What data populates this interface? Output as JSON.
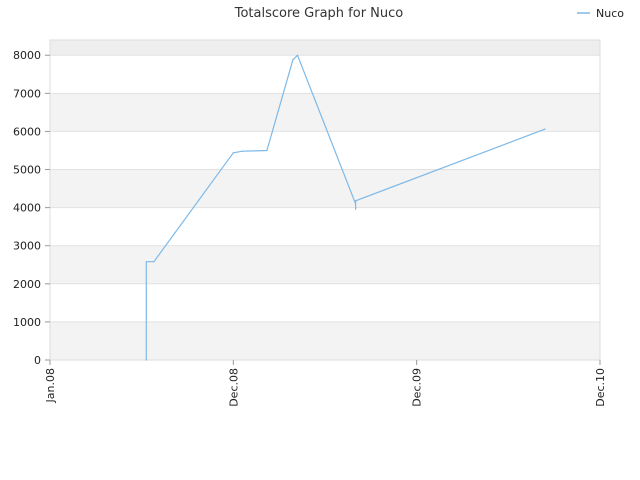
{
  "chart_data": {
    "type": "line",
    "title": "Totalscore Graph for Nuco",
    "xlabel": "",
    "ylabel": "",
    "x_ticks": [
      "Jan.08",
      "Dec.08",
      "Dec.09",
      "Dec.10"
    ],
    "xlim": [
      0,
      36
    ],
    "ylim": [
      0,
      8400
    ],
    "y_ticks": [
      0,
      1000,
      2000,
      3000,
      4000,
      5000,
      6000,
      7000,
      8000
    ],
    "grid": true,
    "banded_background": true,
    "legend_position": "top-right",
    "series": [
      {
        "name": "Nuco",
        "color": "#7db9e8",
        "points": [
          {
            "x": 6.3,
            "y": 0
          },
          {
            "x": 6.3,
            "y": 2580
          },
          {
            "x": 6.8,
            "y": 2580
          },
          {
            "x": 12.0,
            "y": 5440
          },
          {
            "x": 12.6,
            "y": 5480
          },
          {
            "x": 14.2,
            "y": 5500
          },
          {
            "x": 15.9,
            "y": 7880
          },
          {
            "x": 16.2,
            "y": 8000
          },
          {
            "x": 20.0,
            "y": 4100
          },
          {
            "x": 20.0,
            "y": 3960
          },
          {
            "x": 20.0,
            "y": 4180
          },
          {
            "x": 32.4,
            "y": 6060
          }
        ]
      }
    ]
  }
}
